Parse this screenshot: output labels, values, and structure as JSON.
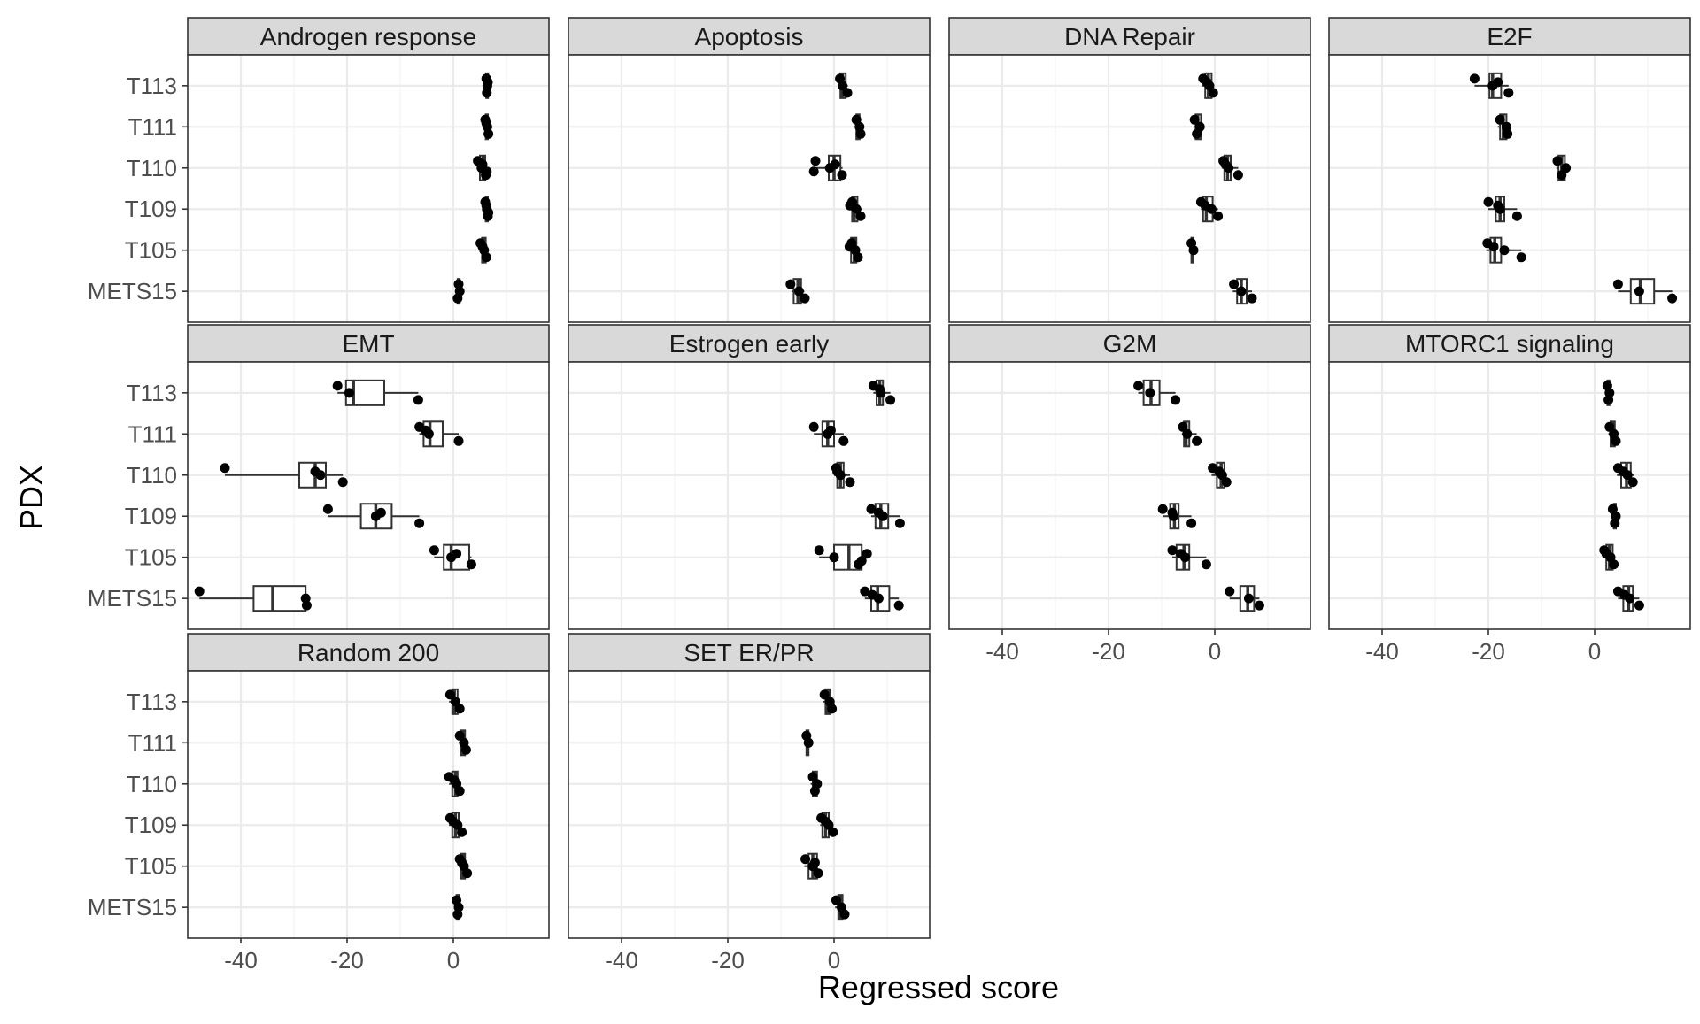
{
  "chart_data": {
    "type": "boxplot-facet",
    "xlabel": "Regressed score",
    "ylabel": "PDX",
    "xlim": [
      -50,
      18
    ],
    "xticks": [
      -40,
      -20,
      0
    ],
    "xtick_labels": [
      "-40",
      "-20",
      "0"
    ],
    "categories": [
      "T113",
      "T111",
      "T110",
      "T109",
      "T105",
      "METS15"
    ],
    "grid": true,
    "panels": [
      {
        "title": "Androgen response",
        "groups": [
          {
            "pdx": "T113",
            "box": [
              6.1,
              6.2,
              6.3,
              6.4,
              6.5
            ],
            "points": [
              6.2,
              6.4,
              6.3,
              6.5
            ]
          },
          {
            "pdx": "T111",
            "box": [
              6.0,
              6.1,
              6.3,
              6.5,
              6.6
            ],
            "points": [
              6.0,
              6.4,
              6.6,
              6.2
            ]
          },
          {
            "pdx": "T110",
            "box": [
              4.6,
              5.0,
              5.6,
              6.0,
              6.3
            ],
            "points": [
              4.6,
              5.3,
              6.1,
              5.5,
              6.3
            ]
          },
          {
            "pdx": "T109",
            "box": [
              6.0,
              6.1,
              6.3,
              6.5,
              6.6
            ],
            "points": [
              6.0,
              6.3,
              6.5,
              6.2,
              6.6
            ]
          },
          {
            "pdx": "T105",
            "box": [
              5.0,
              5.4,
              5.8,
              6.1,
              6.3
            ],
            "points": [
              5.1,
              5.8,
              6.2,
              5.5
            ]
          },
          {
            "pdx": "METS15",
            "box": [
              0.6,
              0.8,
              1.0,
              1.2,
              1.4
            ],
            "points": [
              1.0,
              1.2,
              0.8
            ]
          }
        ]
      },
      {
        "title": "Apoptosis",
        "groups": [
          {
            "pdx": "T113",
            "box": [
              0.9,
              1.2,
              1.6,
              2.2,
              2.6
            ],
            "points": [
              1.1,
              1.6,
              2.5
            ]
          },
          {
            "pdx": "T111",
            "box": [
              4.0,
              4.2,
              4.5,
              4.8,
              5.1
            ],
            "points": [
              4.2,
              4.8,
              5.0
            ]
          },
          {
            "pdx": "T110",
            "box": [
              -3.8,
              -1.0,
              0.0,
              1.2,
              1.6
            ],
            "points": [
              -3.5,
              -0.8,
              1.5,
              0.2,
              -3.8
            ]
          },
          {
            "pdx": "T109",
            "box": [
              3.0,
              3.4,
              3.8,
              4.4,
              5.2
            ],
            "points": [
              3.4,
              4.2,
              5.0,
              3.0
            ]
          },
          {
            "pdx": "T105",
            "box": [
              2.8,
              3.2,
              3.8,
              4.2,
              4.6
            ],
            "points": [
              3.3,
              4.0,
              4.5,
              2.9
            ]
          },
          {
            "pdx": "METS15",
            "box": [
              -8.0,
              -7.6,
              -6.8,
              -6.2,
              -5.6
            ],
            "points": [
              -8.2,
              -6.6,
              -5.5
            ]
          }
        ]
      },
      {
        "title": "DNA Repair",
        "groups": [
          {
            "pdx": "T113",
            "box": [
              -2.5,
              -1.8,
              -1.2,
              -0.6,
              -0.2
            ],
            "points": [
              -2.2,
              -1.0,
              -0.3,
              -1.5
            ]
          },
          {
            "pdx": "T111",
            "box": [
              -4.0,
              -3.6,
              -3.2,
              -2.6,
              -2.2
            ],
            "points": [
              -3.8,
              -2.8,
              -3.4
            ]
          },
          {
            "pdx": "T110",
            "box": [
              1.4,
              1.8,
              2.4,
              3.0,
              4.4
            ],
            "points": [
              1.6,
              2.6,
              4.4,
              2.0
            ]
          },
          {
            "pdx": "T109",
            "box": [
              -2.6,
              -2.2,
              -1.6,
              -0.4,
              0.6
            ],
            "points": [
              -2.6,
              -0.6,
              0.6,
              -1.8
            ]
          },
          {
            "pdx": "T105",
            "box": [
              -4.6,
              -4.4,
              -4.2,
              -4.0,
              -3.8
            ],
            "points": [
              -4.4,
              -4.0
            ]
          },
          {
            "pdx": "METS15",
            "box": [
              3.4,
              4.2,
              5.0,
              6.0,
              7.0
            ],
            "points": [
              3.6,
              5.0,
              7.0
            ]
          }
        ]
      },
      {
        "title": "E2F",
        "groups": [
          {
            "pdx": "T113",
            "box": [
              -22.6,
              -19.8,
              -19.2,
              -17.6,
              -16.2
            ],
            "points": [
              -22.6,
              -19.2,
              -16.2,
              -18.2
            ]
          },
          {
            "pdx": "T111",
            "box": [
              -18.2,
              -17.8,
              -17.2,
              -16.6,
              -16.2
            ],
            "points": [
              -17.8,
              -16.6,
              -16.4
            ]
          },
          {
            "pdx": "T110",
            "box": [
              -7.2,
              -6.8,
              -6.2,
              -5.6,
              -5.0
            ],
            "points": [
              -7.0,
              -5.4,
              -6.2
            ]
          },
          {
            "pdx": "T109",
            "box": [
              -20.0,
              -18.6,
              -17.8,
              -17.0,
              -14.6
            ],
            "points": [
              -20.0,
              -17.8,
              -14.6,
              -18.2
            ]
          },
          {
            "pdx": "T105",
            "box": [
              -20.4,
              -19.6,
              -18.8,
              -17.6,
              -13.8
            ],
            "points": [
              -20.2,
              -17.0,
              -13.8,
              -19.0
            ]
          },
          {
            "pdx": "METS15",
            "box": [
              4.4,
              6.8,
              8.6,
              11.2,
              14.6
            ],
            "points": [
              4.4,
              8.4,
              14.6
            ]
          }
        ]
      },
      {
        "title": "EMT",
        "groups": [
          {
            "pdx": "T113",
            "box": [
              -21.8,
              -20.2,
              -18.8,
              -13.0,
              -6.6
            ],
            "points": [
              -21.8,
              -19.6,
              -6.6
            ]
          },
          {
            "pdx": "T111",
            "box": [
              -6.4,
              -5.6,
              -4.4,
              -2.0,
              1.0
            ],
            "points": [
              -6.4,
              -4.6,
              1.0,
              -5.2
            ]
          },
          {
            "pdx": "T110",
            "box": [
              -43.0,
              -29.0,
              -26.0,
              -24.0,
              -20.8
            ],
            "points": [
              -43.0,
              -25.0,
              -20.8,
              -26.0
            ]
          },
          {
            "pdx": "T109",
            "box": [
              -23.6,
              -17.4,
              -14.6,
              -11.6,
              -6.4
            ],
            "points": [
              -23.6,
              -14.6,
              -6.4,
              -13.6
            ]
          },
          {
            "pdx": "T105",
            "box": [
              -3.6,
              -1.8,
              -0.4,
              3.0,
              3.4
            ],
            "points": [
              -3.6,
              -0.4,
              3.4,
              0.6
            ]
          },
          {
            "pdx": "METS15",
            "box": [
              -47.8,
              -37.6,
              -34.0,
              -27.8,
              -27.6
            ],
            "points": [
              -47.8,
              -27.8,
              -27.6
            ]
          }
        ]
      },
      {
        "title": "Estrogen early",
        "groups": [
          {
            "pdx": "T113",
            "box": [
              7.4,
              8.0,
              8.6,
              9.2,
              10.6
            ],
            "points": [
              7.4,
              8.8,
              10.6,
              8.6
            ]
          },
          {
            "pdx": "T111",
            "box": [
              -3.8,
              -2.2,
              -1.2,
              0.0,
              1.8
            ],
            "points": [
              -3.8,
              -1.2,
              1.8,
              -0.6
            ]
          },
          {
            "pdx": "T110",
            "box": [
              0.0,
              0.6,
              1.2,
              1.8,
              3.0
            ],
            "points": [
              0.4,
              1.2,
              3.0,
              0.6
            ]
          },
          {
            "pdx": "T109",
            "box": [
              7.0,
              7.8,
              8.8,
              10.2,
              12.4
            ],
            "points": [
              7.0,
              9.2,
              12.4,
              8.4
            ]
          },
          {
            "pdx": "T105",
            "box": [
              -2.8,
              0.0,
              2.8,
              5.2,
              6.2
            ],
            "points": [
              -2.8,
              0.0,
              4.6,
              6.2,
              5.2
            ]
          },
          {
            "pdx": "METS15",
            "box": [
              5.8,
              7.0,
              8.2,
              10.4,
              12.2
            ],
            "points": [
              5.8,
              8.4,
              12.2,
              7.2
            ]
          }
        ]
      },
      {
        "title": "G2M",
        "groups": [
          {
            "pdx": "T113",
            "box": [
              -14.4,
              -13.4,
              -12.0,
              -10.4,
              -7.4
            ],
            "points": [
              -14.4,
              -12.2,
              -7.4
            ]
          },
          {
            "pdx": "T111",
            "box": [
              -6.2,
              -5.8,
              -5.4,
              -4.8,
              -3.4
            ],
            "points": [
              -6.0,
              -5.2,
              -3.4
            ]
          },
          {
            "pdx": "T110",
            "box": [
              -0.6,
              0.4,
              1.2,
              1.8,
              2.2
            ],
            "points": [
              -0.4,
              1.4,
              2.2,
              0.8
            ]
          },
          {
            "pdx": "T109",
            "box": [
              -9.8,
              -8.4,
              -7.6,
              -6.8,
              -4.4
            ],
            "points": [
              -9.8,
              -7.8,
              -4.4,
              -8.0
            ]
          },
          {
            "pdx": "T105",
            "box": [
              -8.0,
              -7.2,
              -5.8,
              -4.8,
              -1.6
            ],
            "points": [
              -8.0,
              -5.6,
              -1.6,
              -6.4
            ]
          },
          {
            "pdx": "METS15",
            "box": [
              2.8,
              4.8,
              6.2,
              7.4,
              8.4
            ],
            "points": [
              2.8,
              6.4,
              8.4
            ]
          }
        ]
      },
      {
        "title": "MTORC1 signaling",
        "groups": [
          {
            "pdx": "T113",
            "box": [
              2.2,
              2.4,
              2.6,
              2.8,
              3.0
            ],
            "points": [
              2.4,
              2.8,
              2.6
            ]
          },
          {
            "pdx": "T111",
            "box": [
              2.6,
              3.0,
              3.4,
              3.8,
              4.2
            ],
            "points": [
              2.8,
              3.6,
              4.0
            ]
          },
          {
            "pdx": "T110",
            "box": [
              4.2,
              5.0,
              6.0,
              6.8,
              7.4
            ],
            "points": [
              4.4,
              6.2,
              7.2,
              5.4
            ]
          },
          {
            "pdx": "T109",
            "box": [
              3.4,
              3.6,
              3.8,
              4.0,
              4.2
            ],
            "points": [
              3.4,
              4.0,
              3.8
            ]
          },
          {
            "pdx": "T105",
            "box": [
              1.6,
              2.2,
              2.8,
              3.4,
              3.8
            ],
            "points": [
              1.8,
              3.0,
              3.6,
              2.2
            ]
          },
          {
            "pdx": "METS15",
            "box": [
              4.4,
              5.4,
              6.4,
              7.2,
              8.4
            ],
            "points": [
              4.4,
              6.6,
              8.4,
              5.6
            ]
          }
        ]
      },
      {
        "title": "Random 200",
        "groups": [
          {
            "pdx": "T113",
            "box": [
              -0.8,
              -0.2,
              0.2,
              0.8,
              1.2
            ],
            "points": [
              -0.6,
              0.4,
              1.2
            ]
          },
          {
            "pdx": "T111",
            "box": [
              1.0,
              1.4,
              1.8,
              2.2,
              2.6
            ],
            "points": [
              1.2,
              2.0,
              2.4
            ]
          },
          {
            "pdx": "T110",
            "box": [
              -0.8,
              -0.2,
              0.4,
              0.8,
              1.2
            ],
            "points": [
              -0.8,
              0.6,
              1.2,
              0.2
            ]
          },
          {
            "pdx": "T109",
            "box": [
              -0.8,
              -0.2,
              0.4,
              1.0,
              1.6
            ],
            "points": [
              -0.6,
              0.8,
              1.6,
              0.0
            ]
          },
          {
            "pdx": "T105",
            "box": [
              1.0,
              1.4,
              1.8,
              2.2,
              2.6
            ],
            "points": [
              1.2,
              2.0,
              2.6,
              1.6
            ]
          },
          {
            "pdx": "METS15",
            "box": [
              0.4,
              0.6,
              0.8,
              1.0,
              1.2
            ],
            "points": [
              0.6,
              1.0,
              0.8
            ]
          }
        ]
      },
      {
        "title": "SET ER/PR",
        "groups": [
          {
            "pdx": "T113",
            "box": [
              -2.0,
              -1.6,
              -1.2,
              -0.8,
              -0.4
            ],
            "points": [
              -1.8,
              -0.8,
              -0.4
            ]
          },
          {
            "pdx": "T111",
            "box": [
              -5.4,
              -5.2,
              -5.0,
              -4.8,
              -4.6
            ],
            "points": [
              -5.2,
              -4.8
            ]
          },
          {
            "pdx": "T110",
            "box": [
              -4.4,
              -4.0,
              -3.6,
              -3.2,
              -2.8
            ],
            "points": [
              -4.0,
              -3.2,
              -3.6
            ]
          },
          {
            "pdx": "T109",
            "box": [
              -2.6,
              -2.2,
              -1.6,
              -1.0,
              -0.2
            ],
            "points": [
              -2.4,
              -1.0,
              -0.2,
              -1.6
            ]
          },
          {
            "pdx": "T105",
            "box": [
              -5.6,
              -4.8,
              -4.0,
              -3.2,
              -3.0
            ],
            "points": [
              -5.4,
              -4.0,
              -3.0,
              -3.6
            ]
          },
          {
            "pdx": "METS15",
            "box": [
              0.2,
              0.8,
              1.2,
              1.6,
              2.0
            ],
            "points": [
              0.4,
              1.4,
              2.0
            ]
          }
        ]
      }
    ]
  }
}
